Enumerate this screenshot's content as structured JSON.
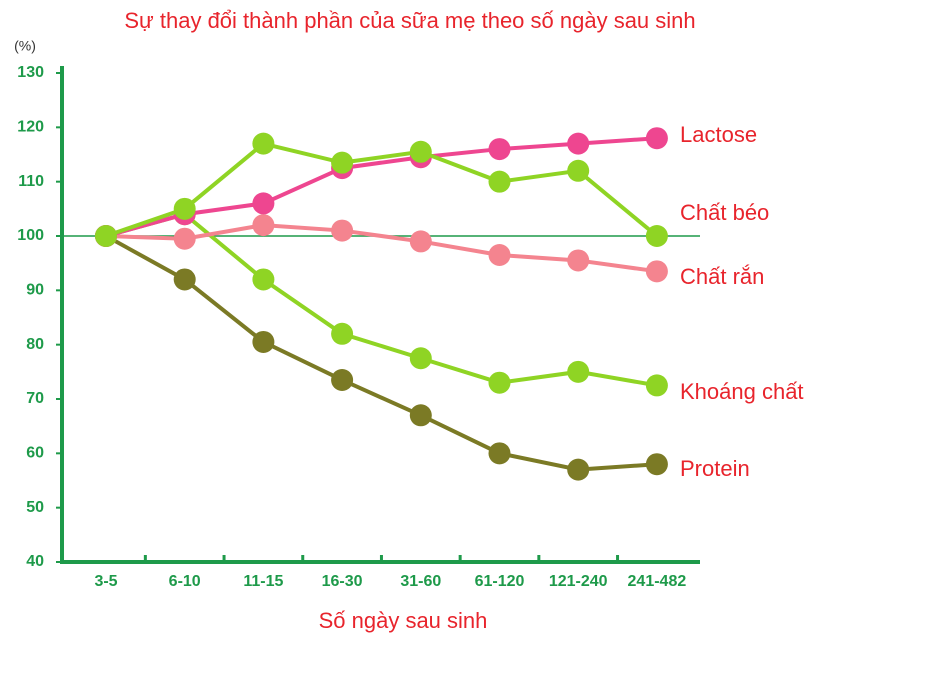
{
  "chart_data": {
    "type": "line",
    "title": "Sự thay đổi thành phần của sữa mẹ theo số ngày sau sinh",
    "y_label": "(%)",
    "x_label": "Số ngày sau sinh",
    "categories": [
      "3-5",
      "6-10",
      "11-15",
      "16-30",
      "31-60",
      "61-120",
      "121-240",
      "241-482"
    ],
    "ylim": [
      40,
      130
    ],
    "yticks": [
      40,
      50,
      60,
      70,
      80,
      90,
      100,
      110,
      120,
      130
    ],
    "hline": 100,
    "series": [
      {
        "name": "Protein",
        "color": "#7b7a25",
        "values": [
          100,
          92,
          80.5,
          73.5,
          67,
          60,
          57,
          58
        ]
      },
      {
        "name": "Khoáng chất",
        "color": "#8fd424",
        "values": [
          100,
          104,
          92,
          82,
          77.5,
          73,
          75,
          72.5
        ]
      },
      {
        "name": "Chất rắn",
        "color": "#f4848f",
        "values": [
          100,
          99.5,
          102,
          101,
          99,
          96.5,
          95.5,
          93.5
        ]
      },
      {
        "name": "Lactose",
        "color": "#ee4690",
        "values": [
          100,
          104,
          106,
          112.5,
          114.5,
          116,
          117,
          118
        ]
      },
      {
        "name": "Chất béo",
        "color": "#8fd424",
        "values": [
          100,
          105,
          117,
          113.5,
          115.5,
          110,
          112,
          100
        ]
      }
    ]
  }
}
